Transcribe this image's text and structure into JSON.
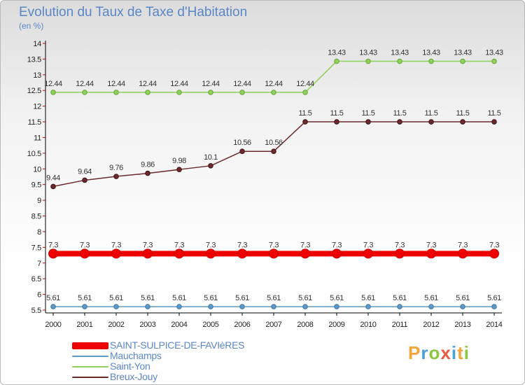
{
  "chart_title": "Evolution du Taux de Taxe d'Habitation",
  "chart_unit": "(en %)",
  "logo_text": "Proxiti",
  "colors": {
    "text": "#5b86c6",
    "axis": "#000000",
    "grid_tick": "#cc0000",
    "logo": [
      "#f3a43b",
      "#4aa1d8",
      "#8cc63f",
      "#e95a48",
      "#4aa1d8",
      "#f3a43b",
      "#8cc63f"
    ]
  },
  "chart_data": {
    "type": "line",
    "title": "Evolution du Taux de Taxe d'Habitation",
    "ylabel": "(en %)",
    "x": [
      "2000",
      "2001",
      "2002",
      "2003",
      "2004",
      "2005",
      "2006",
      "2007",
      "2008",
      "2009",
      "2010",
      "2011",
      "2012",
      "2013",
      "2014"
    ],
    "ylim": [
      5.5,
      14
    ],
    "yticks": [
      "5.5",
      "6",
      "6.5",
      "7",
      "7.5",
      "8",
      "8.5",
      "9",
      "9.5",
      "10",
      "10.5",
      "11",
      "11.5",
      "12",
      "12.5",
      "13",
      "13.5",
      "14"
    ],
    "grid": false,
    "legend_position": "bottom-left",
    "series": [
      {
        "name": "SAINT-SULPICE-DE-FAVIèRES",
        "color": "#ee0000",
        "values": [
          7.3,
          7.3,
          7.3,
          7.3,
          7.3,
          7.3,
          7.3,
          7.3,
          7.3,
          7.3,
          7.3,
          7.3,
          7.3,
          7.3,
          7.3
        ],
        "labels": [
          "7.3",
          "7.3",
          "7.3",
          "7.3",
          "7.3",
          "7.3",
          "7.3",
          "7.3",
          "7.3",
          "7.3",
          "7.3",
          "7.3",
          "7.3",
          "7.3",
          "7.3"
        ]
      },
      {
        "name": "Mauchamps",
        "color": "#5d99c6",
        "values": [
          5.61,
          5.61,
          5.61,
          5.61,
          5.61,
          5.61,
          5.61,
          5.61,
          5.61,
          5.61,
          5.61,
          5.61,
          5.61,
          5.61,
          5.61
        ],
        "labels": [
          "5.61",
          "5.61",
          "5.61",
          "5.61",
          "5.61",
          "5.61",
          "5.61",
          "5.61",
          "5.61",
          "5.61",
          "5.61",
          "5.61",
          "5.61",
          "5.61",
          "5.61"
        ]
      },
      {
        "name": "Saint-Yon",
        "color": "#8ed05a",
        "values": [
          12.44,
          12.44,
          12.44,
          12.44,
          12.44,
          12.44,
          12.44,
          12.44,
          12.44,
          13.43,
          13.43,
          13.43,
          13.43,
          13.43,
          13.43
        ],
        "labels": [
          "12.44",
          "12.44",
          "12.44",
          "12.44",
          "12.44",
          "12.44",
          "12.44",
          "12.44",
          "12.44",
          "13.43",
          "13.43",
          "13.43",
          "13.43",
          "13.43",
          "13.43"
        ]
      },
      {
        "name": "Breux-Jouy",
        "color": "#6b2b2e",
        "values": [
          9.44,
          9.64,
          9.76,
          9.86,
          9.98,
          10.1,
          10.56,
          10.56,
          11.5,
          11.5,
          11.5,
          11.5,
          11.5,
          11.5,
          11.5
        ],
        "labels": [
          "9.44",
          "9.64",
          "9.76",
          "9.86",
          "9.98",
          "10.1",
          "10.56",
          "10.56",
          "11.5",
          "11.5",
          "11.5",
          "11.5",
          "11.5",
          "11.5",
          "11.5"
        ]
      }
    ]
  }
}
